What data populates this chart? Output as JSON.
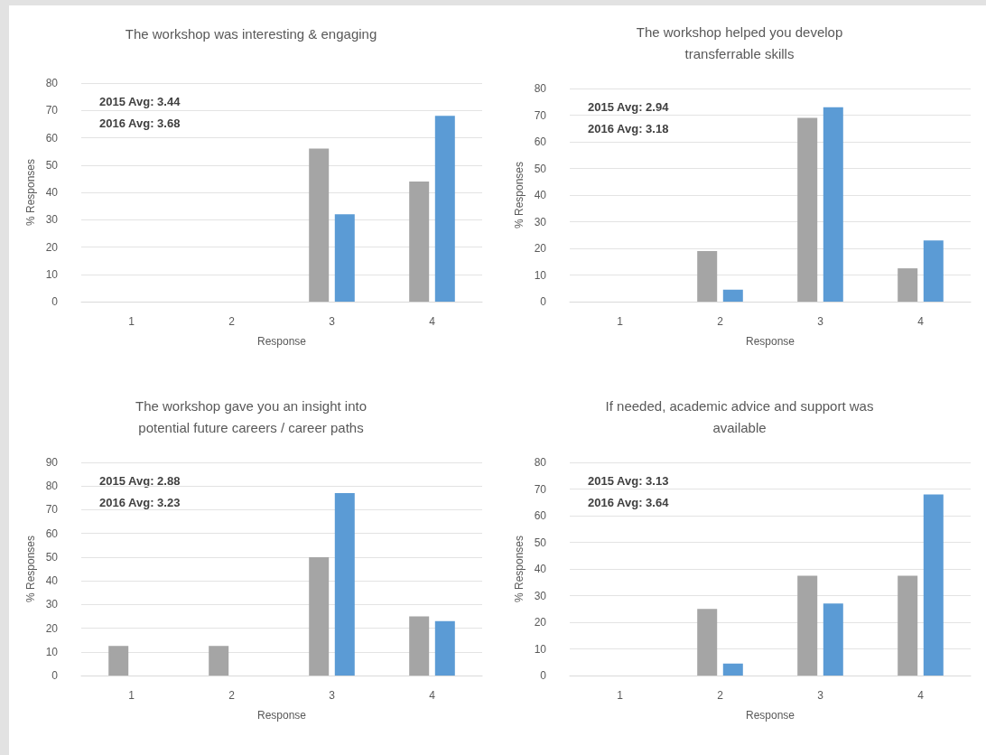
{
  "chart_data": [
    {
      "type": "bar",
      "title": "The workshop was interesting & engaging",
      "xlabel": "Response",
      "ylabel": "% Responses",
      "categories": [
        "1",
        "2",
        "3",
        "4"
      ],
      "series": [
        {
          "color": "#a5a5a5",
          "values": [
            0,
            0,
            56,
            44
          ]
        },
        {
          "color": "#5b9bd5",
          "values": [
            0,
            0,
            32,
            68
          ]
        }
      ],
      "ylim": [
        0,
        80
      ],
      "yticks": [
        0,
        10,
        20,
        30,
        40,
        50,
        60,
        70,
        80
      ],
      "grid": "y",
      "annotations": [
        "2015 Avg: 3.44",
        "2016 Avg: 3.68"
      ]
    },
    {
      "type": "bar",
      "title": "The workshop helped you develop\ntransferrable skills",
      "xlabel": "Response",
      "ylabel": "% Responses",
      "categories": [
        "1",
        "2",
        "3",
        "4"
      ],
      "series": [
        {
          "color": "#a5a5a5",
          "values": [
            0,
            19,
            69,
            12.5
          ]
        },
        {
          "color": "#5b9bd5",
          "values": [
            0,
            4.5,
            73,
            23
          ]
        }
      ],
      "ylim": [
        0,
        80
      ],
      "yticks": [
        0,
        10,
        20,
        30,
        40,
        50,
        60,
        70,
        80
      ],
      "grid": "y",
      "annotations": [
        "2015 Avg: 2.94",
        "2016 Avg: 3.18"
      ]
    },
    {
      "type": "bar",
      "title": "The workshop gave you an insight into\npotential future careers / career paths",
      "xlabel": "Response",
      "ylabel": "% Responses",
      "categories": [
        "1",
        "2",
        "3",
        "4"
      ],
      "series": [
        {
          "color": "#a5a5a5",
          "values": [
            12.5,
            12.5,
            50,
            25
          ]
        },
        {
          "color": "#5b9bd5",
          "values": [
            0,
            0,
            77,
            23
          ]
        }
      ],
      "ylim": [
        0,
        90
      ],
      "yticks": [
        0,
        10,
        20,
        30,
        40,
        50,
        60,
        70,
        80,
        90
      ],
      "grid": "y",
      "annotations": [
        "2015 Avg: 2.88",
        "2016 Avg: 3.23"
      ]
    },
    {
      "type": "bar",
      "title": "If needed, academic advice and support was\navailable",
      "xlabel": "Response",
      "ylabel": "% Responses",
      "categories": [
        "1",
        "2",
        "3",
        "4"
      ],
      "series": [
        {
          "color": "#a5a5a5",
          "values": [
            0,
            25,
            37.5,
            37.5
          ]
        },
        {
          "color": "#5b9bd5",
          "values": [
            0,
            4.5,
            27,
            68
          ]
        }
      ],
      "ylim": [
        0,
        80
      ],
      "yticks": [
        0,
        10,
        20,
        30,
        40,
        50,
        60,
        70,
        80
      ],
      "grid": "y",
      "annotations": [
        "2015 Avg: 3.13",
        "2016 Avg: 3.64"
      ]
    }
  ]
}
